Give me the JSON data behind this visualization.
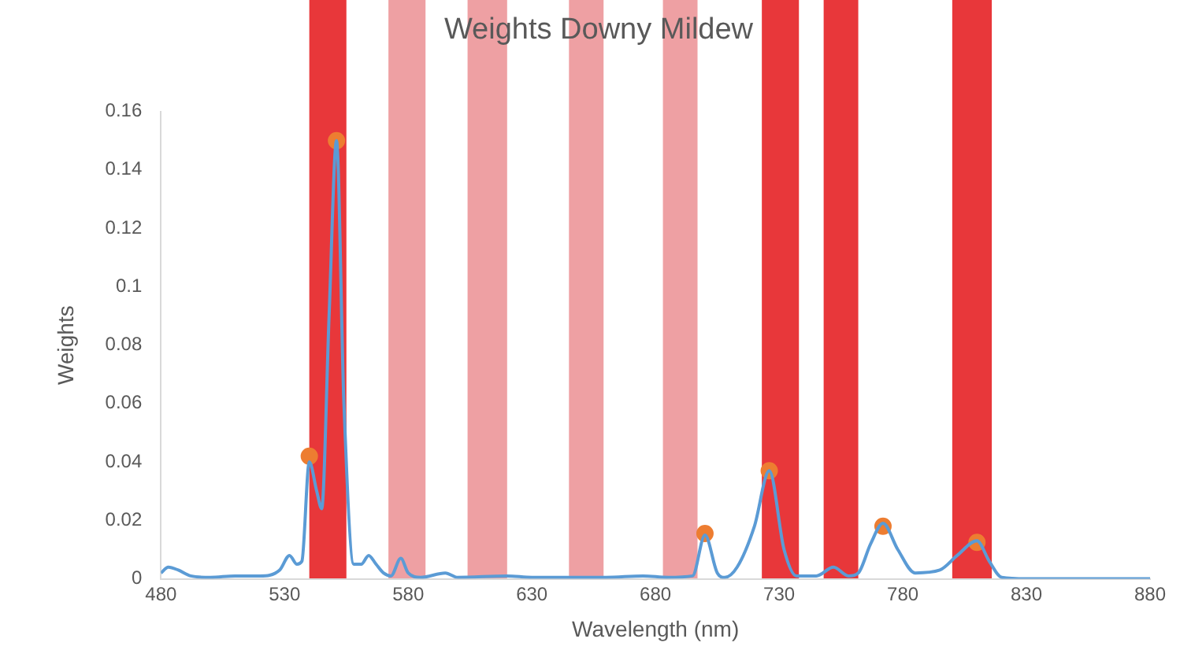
{
  "chart_data": {
    "type": "line",
    "title": "Weights Downy Mildew",
    "xlabel": "Wavelength (nm)",
    "ylabel": "Weights",
    "xlim": [
      480,
      880
    ],
    "xticks": [
      480,
      530,
      580,
      630,
      680,
      730,
      780,
      830,
      880
    ],
    "ylim": [
      0,
      0.16
    ],
    "yticks": [
      0,
      0.02,
      0.04,
      0.06,
      0.08,
      0.1,
      0.12,
      0.14,
      0.16
    ],
    "grid": false,
    "legend": false,
    "series": [
      {
        "color": "#5b9bd5",
        "marker": "none",
        "x": [
          480,
          483,
          487,
          492,
          500,
          510,
          520,
          528,
          532,
          535,
          537,
          540,
          543,
          545,
          548,
          551,
          554,
          558,
          561,
          564,
          567,
          570,
          573,
          577,
          580,
          585,
          595,
          600,
          620,
          630,
          660,
          675,
          685,
          695,
          700,
          705,
          708,
          713,
          720,
          726,
          732,
          737,
          745,
          752,
          758,
          762,
          767,
          772,
          778,
          785,
          795,
          802,
          810,
          815,
          820,
          830,
          880
        ],
        "values": [
          0.002,
          0.004,
          0.003,
          0.001,
          0.0005,
          0.001,
          0.001,
          0.003,
          0.008,
          0.005,
          0.006,
          0.04,
          0.03,
          0.024,
          0.09,
          0.15,
          0.06,
          0.005,
          0.005,
          0.008,
          0.005,
          0.002,
          0.001,
          0.007,
          0.002,
          0.0005,
          0.002,
          0.0005,
          0.001,
          0.0005,
          0.0005,
          0.001,
          0.0005,
          0.001,
          0.015,
          0.002,
          0.0005,
          0.004,
          0.018,
          0.037,
          0.01,
          0.001,
          0.001,
          0.004,
          0.001,
          0.002,
          0.012,
          0.019,
          0.01,
          0.002,
          0.003,
          0.008,
          0.013,
          0.006,
          0.0005,
          0,
          0
        ]
      },
      {
        "type": "scatter",
        "color": "#ed7d31",
        "marker": "circle",
        "x": [
          540,
          551,
          700,
          726,
          772,
          810
        ],
        "values": [
          0.042,
          0.15,
          0.0155,
          0.037,
          0.018,
          0.0125
        ]
      }
    ],
    "bands": [
      {
        "axis": "x",
        "from": 540,
        "to": 555,
        "color": "#e8373a"
      },
      {
        "axis": "x",
        "from": 572,
        "to": 587,
        "color": "#eea0a3"
      },
      {
        "axis": "x",
        "from": 604,
        "to": 620,
        "color": "#eea0a3"
      },
      {
        "axis": "x",
        "from": 645,
        "to": 659,
        "color": "#eea0a3"
      },
      {
        "axis": "x",
        "from": 683,
        "to": 697,
        "color": "#eea0a3"
      },
      {
        "axis": "x",
        "from": 723,
        "to": 738,
        "color": "#e8373a"
      },
      {
        "axis": "x",
        "from": 748,
        "to": 762,
        "color": "#e8373a"
      },
      {
        "axis": "x",
        "from": 800,
        "to": 816,
        "color": "#e8373a"
      }
    ]
  }
}
